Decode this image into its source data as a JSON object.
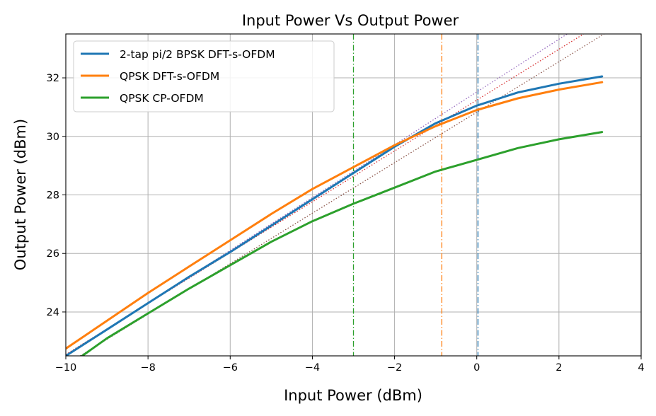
{
  "chart_data": {
    "type": "line",
    "title": "Input Power Vs Output Power",
    "xlabel": "Input Power (dBm)",
    "ylabel": "Output Power (dBm)",
    "xlim": [
      -10,
      4
    ],
    "ylim": [
      22.5,
      33.5
    ],
    "xticks": [
      -10,
      -8,
      -6,
      -4,
      -2,
      0,
      2,
      4
    ],
    "xtick_labels": [
      "−10",
      "−8",
      "−6",
      "−4",
      "−2",
      "0",
      "2",
      "4"
    ],
    "yticks": [
      24,
      26,
      28,
      30,
      32
    ],
    "ytick_labels": [
      "24",
      "26",
      "28",
      "30",
      "32"
    ],
    "grid": true,
    "legend_position": "top-left",
    "series": [
      {
        "name": "2-tap pi/2 BPSK DFT-s-OFDM",
        "color": "#1f77b4",
        "x": [
          -10,
          -9,
          -8,
          -7,
          -6,
          -5,
          -4,
          -3,
          -2,
          -1,
          0,
          1,
          2,
          3.05
        ],
        "y": [
          22.5,
          23.4,
          24.3,
          25.2,
          26.05,
          26.95,
          27.85,
          28.75,
          29.65,
          30.45,
          31.05,
          31.5,
          31.8,
          32.05
        ]
      },
      {
        "name": "QPSK DFT-s-OFDM",
        "color": "#ff7f0e",
        "x": [
          -10,
          -9,
          -8,
          -7,
          -6,
          -5,
          -4,
          -3,
          -2,
          -1,
          0,
          1,
          2,
          3.05
        ],
        "y": [
          22.75,
          23.7,
          24.65,
          25.55,
          26.45,
          27.35,
          28.2,
          28.95,
          29.7,
          30.35,
          30.9,
          31.3,
          31.6,
          31.85
        ]
      },
      {
        "name": "QPSK CP-OFDM",
        "color": "#2ca02c",
        "x": [
          -9.6,
          -9,
          -8,
          -7,
          -6,
          -5,
          -4,
          -3,
          -2,
          -1,
          0,
          1,
          2,
          3.05
        ],
        "y": [
          22.5,
          23.1,
          23.95,
          24.8,
          25.6,
          26.4,
          27.1,
          27.7,
          28.25,
          28.8,
          29.2,
          29.6,
          29.9,
          30.15
        ]
      }
    ],
    "reference_lines": [
      {
        "type": "vertical",
        "x": 0.03,
        "color": "#1f77b4",
        "style": "dashdot"
      },
      {
        "type": "vertical",
        "x": -0.85,
        "color": "#ff7f0e",
        "style": "dashdot"
      },
      {
        "type": "vertical",
        "x": -3.0,
        "color": "#2ca02c",
        "style": "dashdot"
      },
      {
        "type": "diagonal",
        "x": [
          -10,
          2.2
        ],
        "y": [
          22.5,
          33.5
        ],
        "color": "#9467bd",
        "style": "dotted"
      },
      {
        "type": "diagonal",
        "x": [
          -10,
          2.6
        ],
        "y": [
          22.55,
          33.5
        ],
        "color": "#d62728",
        "style": "dotted"
      },
      {
        "type": "diagonal",
        "x": [
          -10,
          3.1
        ],
        "y": [
          22.2,
          33.5
        ],
        "color": "#8c564b",
        "style": "dotted"
      }
    ]
  }
}
